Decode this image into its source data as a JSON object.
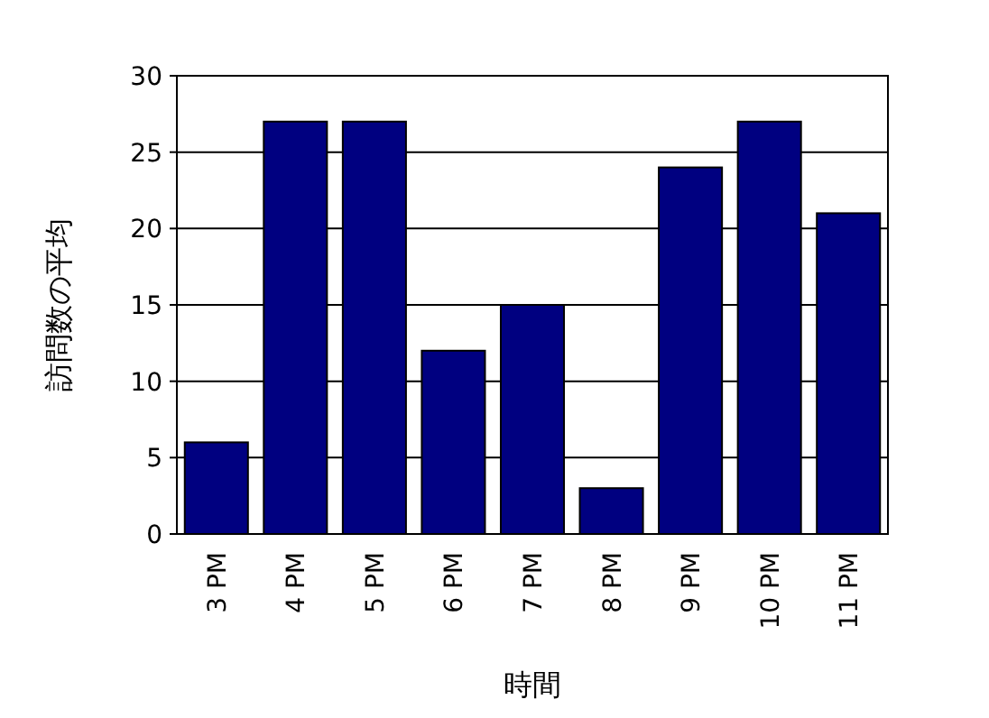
{
  "chart_data": {
    "type": "bar",
    "xlabel": "時間",
    "ylabel": "訪問数の平均",
    "categories": [
      "3 PM",
      "4 PM",
      "5 PM",
      "6 PM",
      "7 PM",
      "8 PM",
      "9 PM",
      "10 PM",
      "11 PM"
    ],
    "values": [
      6,
      27,
      27,
      12,
      15,
      3,
      24,
      27,
      21
    ],
    "color": "#000080",
    "ylim": [
      0,
      30
    ],
    "yticks": [
      0,
      5,
      10,
      15,
      20,
      25,
      30
    ],
    "grid": "y"
  }
}
